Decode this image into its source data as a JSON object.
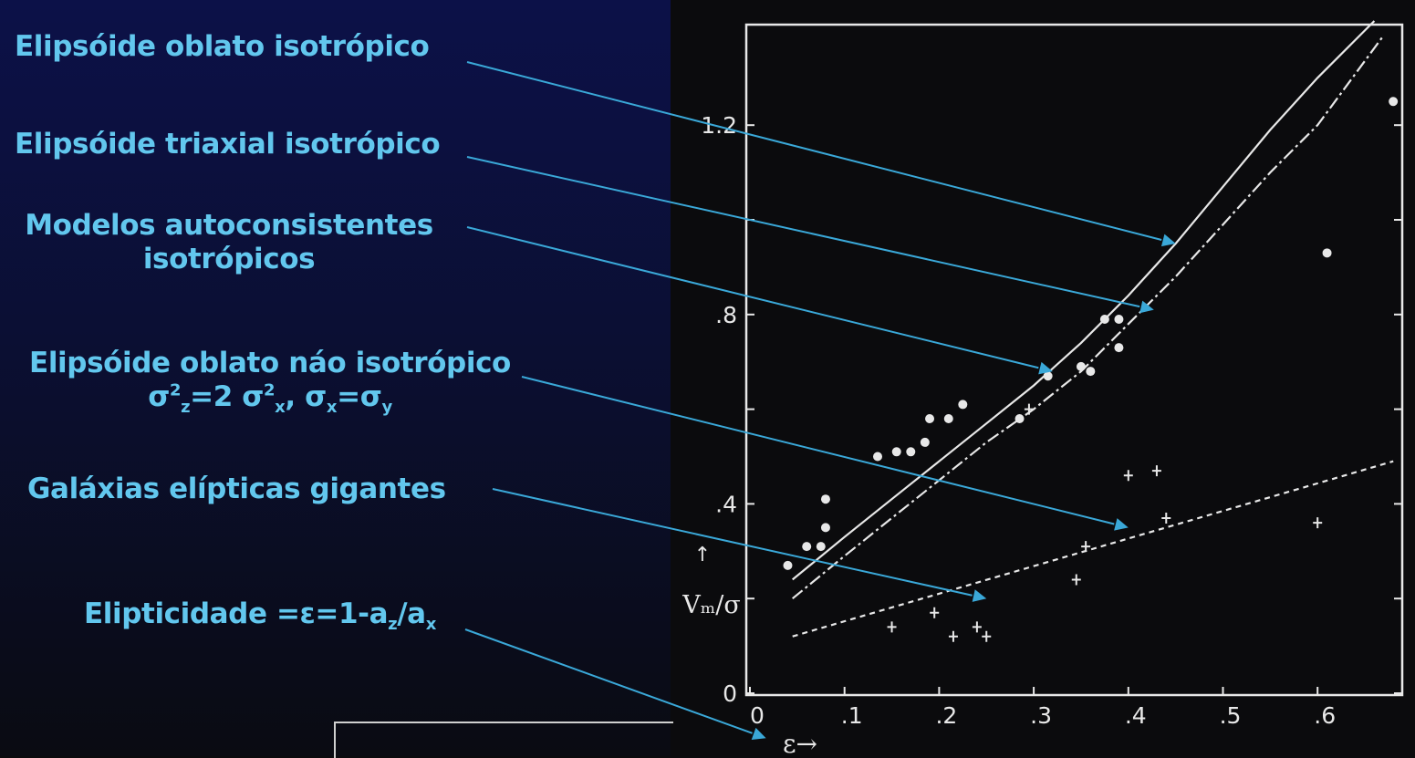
{
  "annotations": {
    "oblate_isotropic": "Elipsóide oblato isotrópico",
    "triaxial_isotropic": "Elipsóide triaxial isotrópico",
    "self_consistent_line1": "Modelos autoconsistentes",
    "self_consistent_line2": "isotrópicos",
    "oblate_anisotropic": "Elipsóide oblato náo isotrópico",
    "oblate_anisotropic_formula": {
      "sigma": "σ",
      "sq": "2",
      "z": "z",
      "eq2": "=2 ",
      "x": "x",
      "sep": ", ",
      "sx": "σ",
      "xs": "x",
      "eq": "=",
      "sy": "σ",
      "ys": "y"
    },
    "giant_ellipticals": "Galáxias elípticas gigantes",
    "ellipticity": {
      "prefix": "Elipticidade =ε=1-a",
      "z": "z",
      "slash": "/a",
      "x": "x"
    }
  },
  "colors": {
    "annotation_text": "#62c7ee",
    "arrow": "#3aa8d8",
    "plot_ink": "#e8e8e8",
    "left_panel_top": "#0c1148",
    "background": "#0b0b0d"
  },
  "chart_data": {
    "type": "scatter",
    "xlabel": "ε→",
    "ylabel": "Vₘ/σ",
    "ylabel_arrow": "↑",
    "xlim": [
      0,
      0.68
    ],
    "ylim": [
      0,
      1.42
    ],
    "x_ticks": [
      {
        "value": 0,
        "label": "0"
      },
      {
        "value": 0.1,
        "label": ".1"
      },
      {
        "value": 0.2,
        "label": ".2"
      },
      {
        "value": 0.3,
        "label": ".3"
      },
      {
        "value": 0.4,
        "label": ".4"
      },
      {
        "value": 0.5,
        "label": ".5"
      },
      {
        "value": 0.6,
        "label": ".6"
      }
    ],
    "y_ticks": [
      {
        "value": 0,
        "label": "0"
      },
      {
        "value": 0.2,
        "label": ""
      },
      {
        "value": 0.4,
        "label": ".4"
      },
      {
        "value": 0.6,
        "label": ""
      },
      {
        "value": 0.8,
        "label": ".8"
      },
      {
        "value": 1.0,
        "label": ""
      },
      {
        "value": 1.2,
        "label": "1.2"
      }
    ],
    "curves": [
      {
        "style": "solid",
        "points": [
          [
            0.045,
            0.24
          ],
          [
            0.1,
            0.33
          ],
          [
            0.15,
            0.41
          ],
          [
            0.2,
            0.49
          ],
          [
            0.25,
            0.57
          ],
          [
            0.3,
            0.65
          ],
          [
            0.35,
            0.74
          ],
          [
            0.4,
            0.84
          ],
          [
            0.45,
            0.95
          ],
          [
            0.5,
            1.07
          ],
          [
            0.55,
            1.19
          ],
          [
            0.6,
            1.3
          ],
          [
            0.66,
            1.42
          ]
        ]
      },
      {
        "style": "dashdot",
        "points": [
          [
            0.045,
            0.2
          ],
          [
            0.1,
            0.29
          ],
          [
            0.15,
            0.37
          ],
          [
            0.2,
            0.45
          ],
          [
            0.25,
            0.53
          ],
          [
            0.3,
            0.6
          ],
          [
            0.35,
            0.68
          ],
          [
            0.4,
            0.78
          ],
          [
            0.45,
            0.88
          ],
          [
            0.5,
            0.99
          ],
          [
            0.55,
            1.1
          ],
          [
            0.6,
            1.2
          ],
          [
            0.67,
            1.39
          ]
        ]
      },
      {
        "style": "dashed",
        "points": [
          [
            0.045,
            0.12
          ],
          [
            0.68,
            0.49
          ]
        ]
      }
    ],
    "series": [
      {
        "marker": "dot",
        "points": [
          [
            0.04,
            0.27
          ],
          [
            0.06,
            0.31
          ],
          [
            0.075,
            0.31
          ],
          [
            0.08,
            0.35
          ],
          [
            0.08,
            0.41
          ],
          [
            0.135,
            0.5
          ],
          [
            0.155,
            0.51
          ],
          [
            0.17,
            0.51
          ],
          [
            0.185,
            0.53
          ],
          [
            0.19,
            0.58
          ],
          [
            0.21,
            0.58
          ],
          [
            0.225,
            0.61
          ],
          [
            0.285,
            0.58
          ],
          [
            0.315,
            0.67
          ],
          [
            0.35,
            0.69
          ],
          [
            0.36,
            0.68
          ],
          [
            0.375,
            0.79
          ],
          [
            0.39,
            0.79
          ],
          [
            0.39,
            0.73
          ],
          [
            0.61,
            0.93
          ],
          [
            0.68,
            1.25
          ]
        ]
      },
      {
        "marker": "cross",
        "points": [
          [
            0.15,
            0.14
          ],
          [
            0.195,
            0.17
          ],
          [
            0.215,
            0.12
          ],
          [
            0.24,
            0.14
          ],
          [
            0.25,
            0.12
          ],
          [
            0.295,
            0.6
          ],
          [
            0.345,
            0.24
          ],
          [
            0.355,
            0.31
          ],
          [
            0.4,
            0.46
          ],
          [
            0.43,
            0.47
          ],
          [
            0.44,
            0.37
          ],
          [
            0.6,
            0.36
          ]
        ]
      }
    ]
  }
}
